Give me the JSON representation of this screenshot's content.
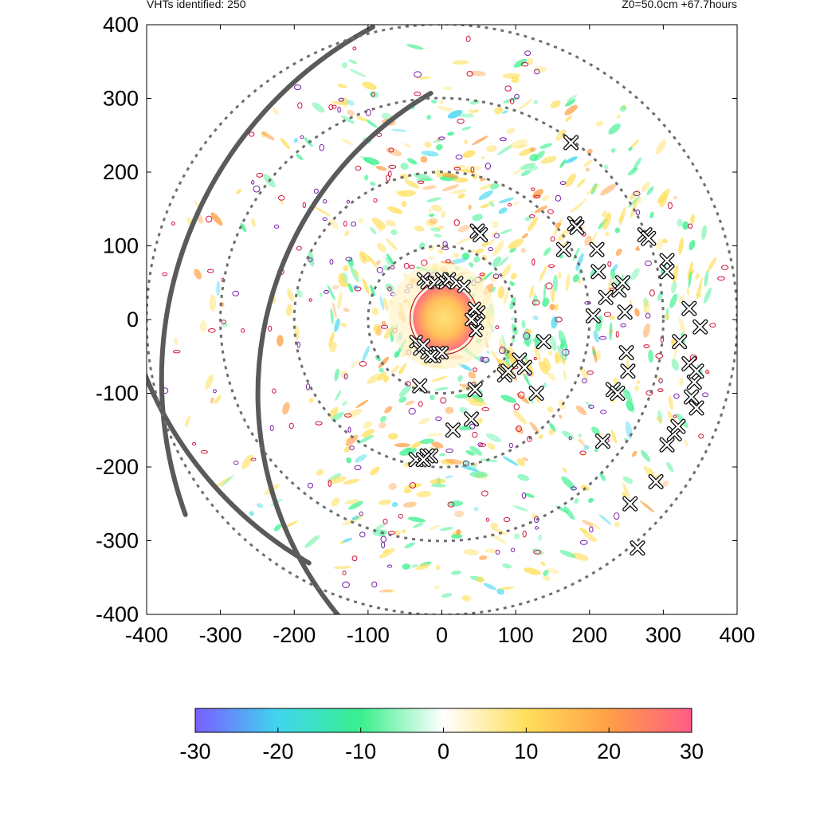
{
  "header": {
    "left_text": "VHTs identified: 250",
    "right_text": "Z0=50.0cm  +67.7hours"
  },
  "chart_data": {
    "type": "heatmap",
    "title": "",
    "xlabel": "",
    "ylabel": "",
    "xlim": [
      -400,
      400
    ],
    "ylim": [
      -400,
      400
    ],
    "x_ticks": [
      -400,
      -300,
      -200,
      -100,
      0,
      100,
      200,
      300,
      400
    ],
    "y_ticks": [
      -400,
      -300,
      -200,
      -100,
      0,
      100,
      200,
      300,
      400
    ],
    "grid": false,
    "colorbar": {
      "min": -30,
      "max": 30,
      "ticks": [
        -30,
        -20,
        -10,
        0,
        10,
        20,
        30
      ],
      "colors": [
        "#7b5cff",
        "#3fd6ef",
        "#39f08c",
        "#ffffff",
        "#ffdf5a",
        "#ff9f45",
        "#ff5c86"
      ]
    },
    "range_rings": [
      100,
      200,
      300,
      400
    ],
    "vht_count": 250,
    "vht_markers": [
      [
        -30,
        -90
      ],
      [
        -35,
        -190
      ],
      [
        -15,
        -185
      ],
      [
        -20,
        -185
      ],
      [
        -25,
        -190
      ],
      [
        15,
        -150
      ],
      [
        40,
        -135
      ],
      [
        45,
        -95
      ],
      [
        48,
        120
      ],
      [
        52,
        115
      ],
      [
        85,
        -75
      ],
      [
        90,
        -70
      ],
      [
        105,
        -55
      ],
      [
        112,
        -65
      ],
      [
        128,
        -100
      ],
      [
        138,
        -30
      ],
      [
        165,
        95
      ],
      [
        175,
        240
      ],
      [
        180,
        130
      ],
      [
        183,
        125
      ],
      [
        205,
        5
      ],
      [
        210,
        95
      ],
      [
        212,
        65
      ],
      [
        218,
        -165
      ],
      [
        222,
        30
      ],
      [
        232,
        -95
      ],
      [
        238,
        -100
      ],
      [
        240,
        40
      ],
      [
        245,
        50
      ],
      [
        248,
        10
      ],
      [
        250,
        -45
      ],
      [
        252,
        -70
      ],
      [
        255,
        -250
      ],
      [
        265,
        -310
      ],
      [
        275,
        115
      ],
      [
        280,
        110
      ],
      [
        290,
        -220
      ],
      [
        305,
        -170
      ],
      [
        305,
        80
      ],
      [
        305,
        65
      ],
      [
        315,
        -155
      ],
      [
        320,
        -145
      ],
      [
        322,
        -30
      ],
      [
        335,
        -60
      ],
      [
        335,
        15
      ],
      [
        338,
        -105
      ],
      [
        342,
        -85
      ],
      [
        345,
        -70
      ],
      [
        345,
        -120
      ],
      [
        350,
        -10
      ]
    ],
    "eyewall_markers": [
      [
        -25,
        55
      ],
      [
        -20,
        50
      ],
      [
        -10,
        50
      ],
      [
        0,
        55
      ],
      [
        5,
        50
      ],
      [
        10,
        55
      ],
      [
        20,
        50
      ],
      [
        30,
        45
      ],
      [
        -35,
        -30
      ],
      [
        -30,
        -40
      ],
      [
        -20,
        -45
      ],
      [
        -10,
        -50
      ],
      [
        -5,
        -45
      ],
      [
        0,
        -45
      ],
      [
        -25,
        -35
      ],
      [
        -15,
        -50
      ],
      [
        45,
        5
      ],
      [
        48,
        -5
      ],
      [
        50,
        10
      ],
      [
        46,
        -15
      ],
      [
        40,
        0
      ],
      [
        44,
        15
      ]
    ]
  }
}
